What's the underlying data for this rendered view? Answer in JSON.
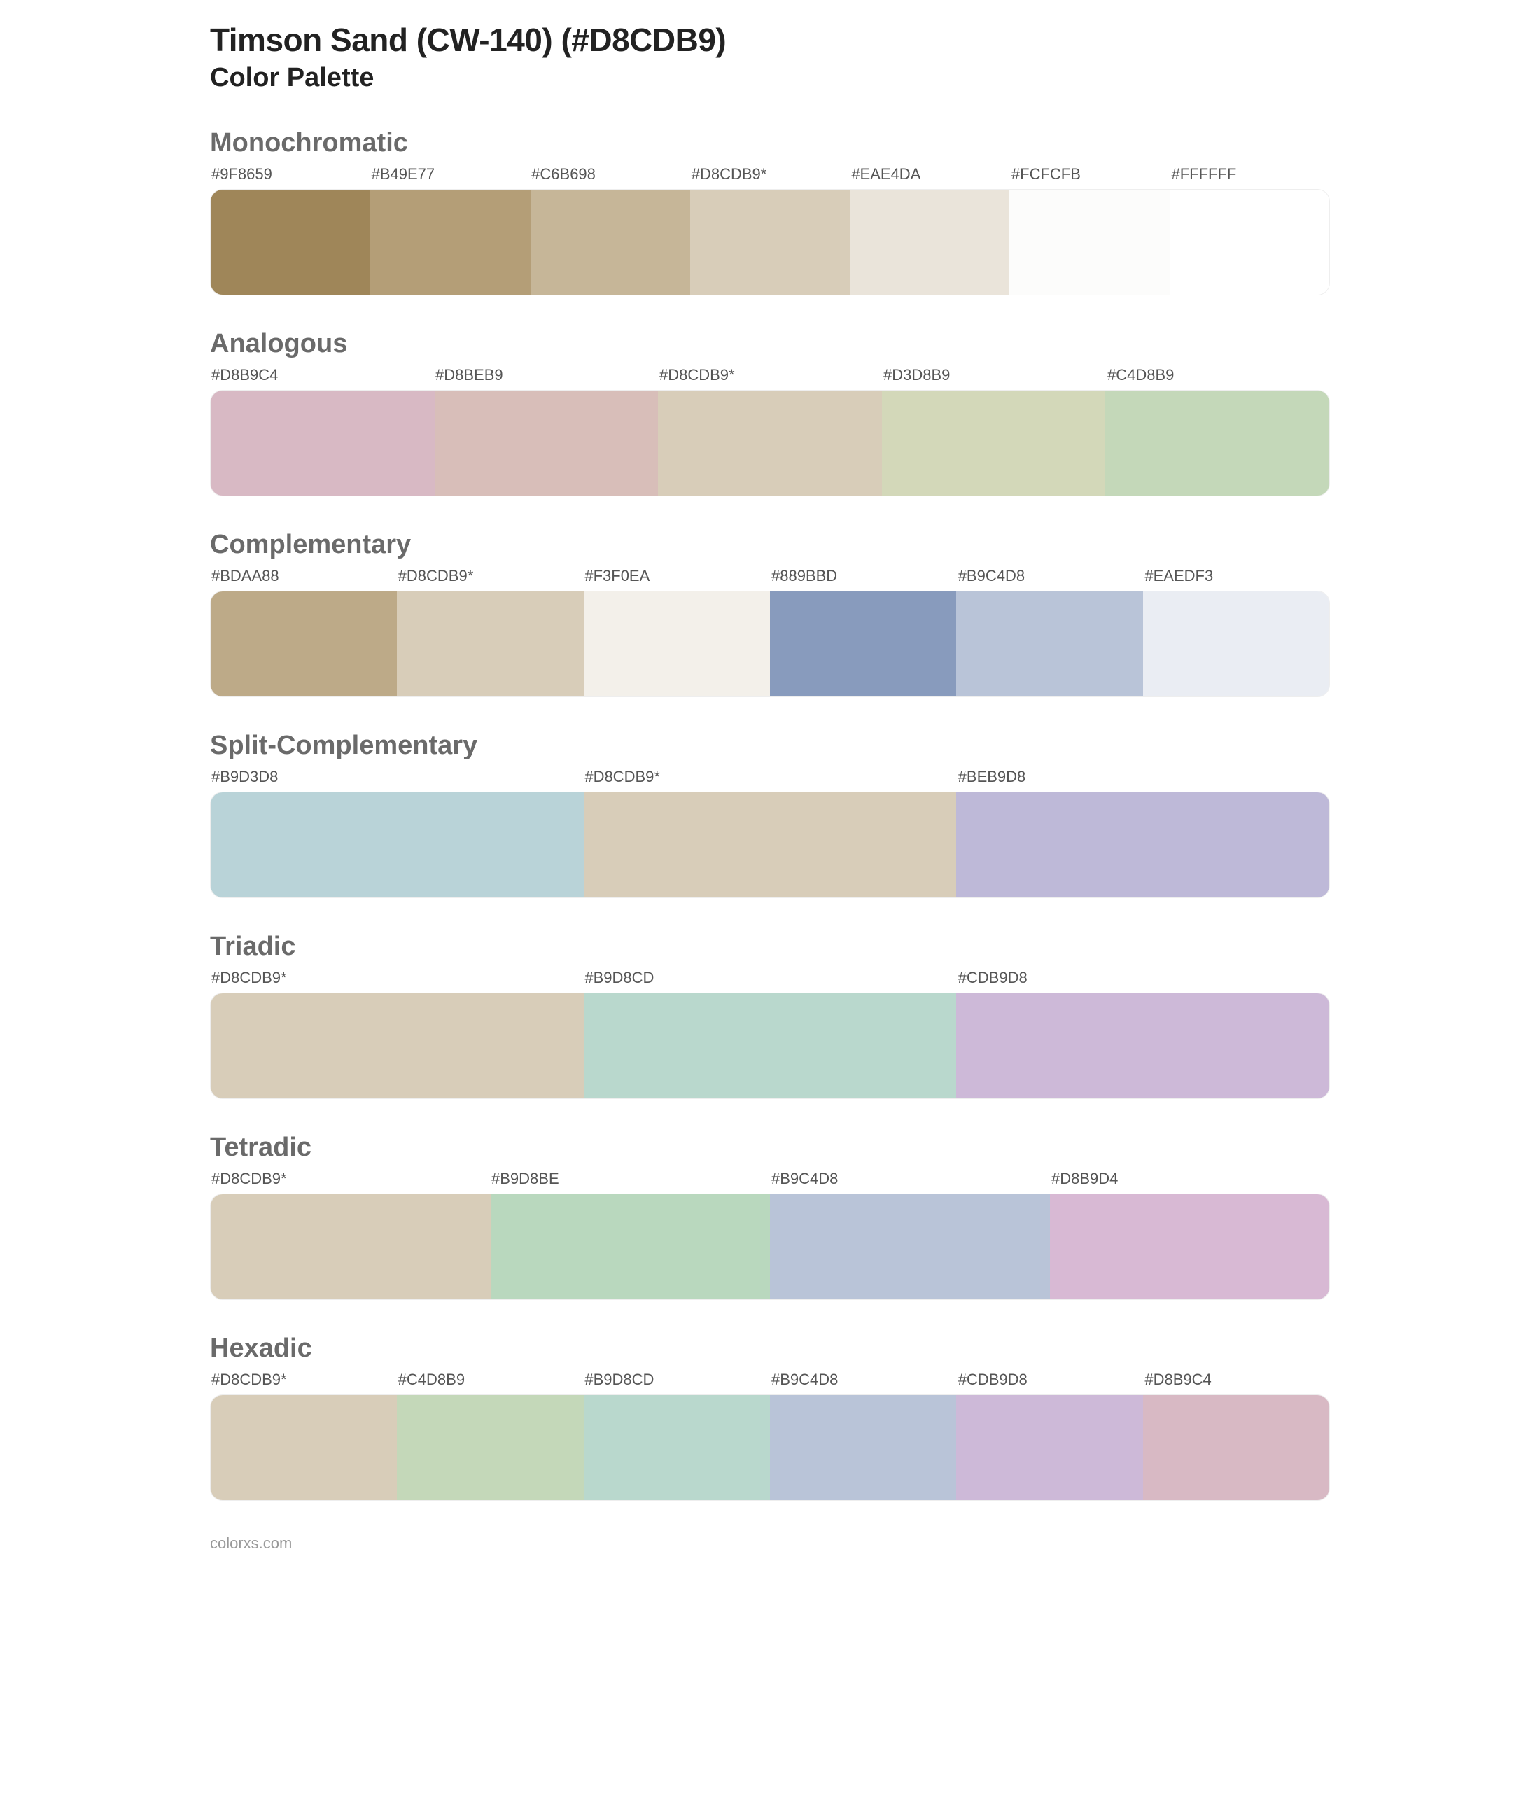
{
  "title": "Timson Sand (CW-140) (#D8CDB9)",
  "subtitle": "Color Palette",
  "footer": "colorxs.com",
  "style": {
    "background_color": "#ffffff",
    "title_color": "#222222",
    "title_fontsize": 46,
    "subtitle_fontsize": 38,
    "section_title_color": "#6a6a6a",
    "section_title_fontsize": 38,
    "label_color": "#555555",
    "label_fontsize": 22,
    "swatch_height": 150,
    "row_border_radius": 18,
    "row_border_color": "#eeeeee"
  },
  "sections": [
    {
      "title": "Monochromatic",
      "swatches": [
        {
          "label": "#9F8659",
          "color": "#9F8659"
        },
        {
          "label": "#B49E77",
          "color": "#B49E77"
        },
        {
          "label": "#C6B698",
          "color": "#C6B698"
        },
        {
          "label": "#D8CDB9*",
          "color": "#D8CDB9"
        },
        {
          "label": "#EAE4DA",
          "color": "#EAE4DA"
        },
        {
          "label": "#FCFCFB",
          "color": "#FCFCFB"
        },
        {
          "label": "#FFFFFF",
          "color": "#FFFFFF"
        }
      ]
    },
    {
      "title": "Analogous",
      "swatches": [
        {
          "label": "#D8B9C4",
          "color": "#D8B9C4"
        },
        {
          "label": "#D8BEB9",
          "color": "#D8BEB9"
        },
        {
          "label": "#D8CDB9*",
          "color": "#D8CDB9"
        },
        {
          "label": "#D3D8B9",
          "color": "#D3D8B9"
        },
        {
          "label": "#C4D8B9",
          "color": "#C4D8B9"
        }
      ]
    },
    {
      "title": "Complementary",
      "swatches": [
        {
          "label": "#BDAA88",
          "color": "#BDAA88"
        },
        {
          "label": "#D8CDB9*",
          "color": "#D8CDB9"
        },
        {
          "label": "#F3F0EA",
          "color": "#F3F0EA"
        },
        {
          "label": "#889BBD",
          "color": "#889BBD"
        },
        {
          "label": "#B9C4D8",
          "color": "#B9C4D8"
        },
        {
          "label": "#EAEDF3",
          "color": "#EAEDF3"
        }
      ]
    },
    {
      "title": "Split-Complementary",
      "swatches": [
        {
          "label": "#B9D3D8",
          "color": "#B9D3D8"
        },
        {
          "label": "#D8CDB9*",
          "color": "#D8CDB9"
        },
        {
          "label": "#BEB9D8",
          "color": "#BEB9D8"
        }
      ]
    },
    {
      "title": "Triadic",
      "swatches": [
        {
          "label": "#D8CDB9*",
          "color": "#D8CDB9"
        },
        {
          "label": "#B9D8CD",
          "color": "#B9D8CD"
        },
        {
          "label": "#CDB9D8",
          "color": "#CDB9D8"
        }
      ]
    },
    {
      "title": "Tetradic",
      "swatches": [
        {
          "label": "#D8CDB9*",
          "color": "#D8CDB9"
        },
        {
          "label": "#B9D8BE",
          "color": "#B9D8BE"
        },
        {
          "label": "#B9C4D8",
          "color": "#B9C4D8"
        },
        {
          "label": "#D8B9D4",
          "color": "#D8B9D4"
        }
      ]
    },
    {
      "title": "Hexadic",
      "swatches": [
        {
          "label": "#D8CDB9*",
          "color": "#D8CDB9"
        },
        {
          "label": "#C4D8B9",
          "color": "#C4D8B9"
        },
        {
          "label": "#B9D8CD",
          "color": "#B9D8CD"
        },
        {
          "label": "#B9C4D8",
          "color": "#B9C4D8"
        },
        {
          "label": "#CDB9D8",
          "color": "#CDB9D8"
        },
        {
          "label": "#D8B9C4",
          "color": "#D8B9C4"
        }
      ]
    }
  ]
}
